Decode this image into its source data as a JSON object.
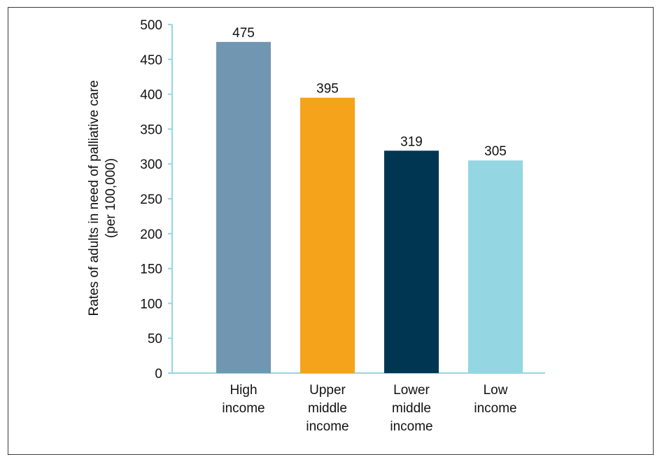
{
  "chart_data": {
    "type": "bar",
    "categories": [
      [
        "High",
        "income"
      ],
      [
        "Upper",
        "middle",
        "income"
      ],
      [
        "Lower",
        "middle",
        "income"
      ],
      [
        "Low",
        "income"
      ]
    ],
    "values": [
      475,
      395,
      319,
      305
    ],
    "bar_colors": [
      "#7196b2",
      "#f5a31a",
      "#003652",
      "#94d6e2"
    ],
    "axis_color": "#94d6e2",
    "ylabel": [
      "Rates of adults in need of palliative care",
      "(per 100,000)"
    ],
    "ylim": [
      0,
      500
    ],
    "yticks": [
      0,
      50,
      100,
      150,
      200,
      250,
      300,
      350,
      400,
      450,
      500
    ],
    "grid": false,
    "legend": "none"
  }
}
